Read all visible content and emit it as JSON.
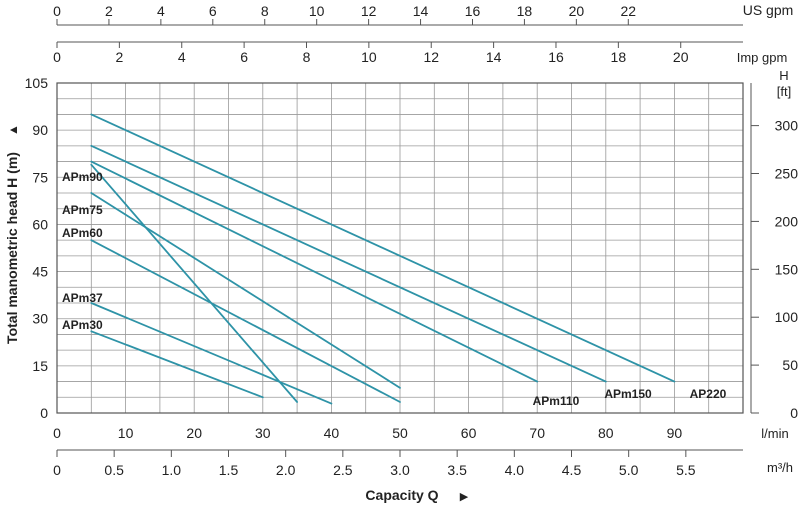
{
  "chart_data": {
    "type": "line",
    "title": "",
    "xlabel": "Capacity Q",
    "ylabel": "Total manometric head H (m)",
    "ylabel_arrow": "▲",
    "xlabel_arrow": "▶",
    "grid": true,
    "x_lpm": {
      "unit": "l/min",
      "range": [
        0,
        100
      ],
      "ticks": [
        0,
        10,
        20,
        30,
        40,
        50,
        60,
        70,
        80,
        90
      ]
    },
    "x_m3h": {
      "unit": "m³/h",
      "ticks": [
        "0",
        "0.5",
        "1.0",
        "1.5",
        "2.0",
        "2.5",
        "3.0",
        "3.5",
        "4.0",
        "4.5",
        "5.0",
        "5.5"
      ]
    },
    "x_imp": {
      "unit": "Imp gpm",
      "ticks": [
        0,
        2,
        4,
        6,
        8,
        10,
        12,
        14,
        16,
        18,
        20
      ]
    },
    "x_us": {
      "unit": "US gpm",
      "ticks": [
        0,
        2,
        4,
        6,
        8,
        10,
        12,
        14,
        16,
        18,
        20,
        22
      ]
    },
    "y_m": {
      "range": [
        0,
        105
      ],
      "ticks": [
        0,
        15,
        30,
        45,
        60,
        75,
        90,
        105
      ]
    },
    "y_ft": {
      "unit_line1": "H",
      "unit_line2": "[ft]",
      "ticks": [
        0,
        50,
        100,
        150,
        200,
        250,
        300
      ]
    },
    "series": [
      {
        "name": "APm30",
        "points": [
          [
            5,
            26
          ],
          [
            30,
            5
          ]
        ]
      },
      {
        "name": "APm37",
        "points": [
          [
            5,
            35
          ],
          [
            40,
            3
          ]
        ]
      },
      {
        "name": "APm60",
        "points": [
          [
            5,
            55
          ],
          [
            50,
            3.5
          ]
        ]
      },
      {
        "name": "APm75",
        "points": [
          [
            5,
            70
          ],
          [
            50,
            8
          ]
        ]
      },
      {
        "name": "APm90",
        "points": [
          [
            5,
            79
          ],
          [
            35,
            3.5
          ]
        ]
      },
      {
        "name": "APm110",
        "points": [
          [
            5,
            80
          ],
          [
            70,
            10
          ]
        ]
      },
      {
        "name": "APm150",
        "points": [
          [
            5,
            85
          ],
          [
            80,
            10
          ]
        ]
      },
      {
        "name": "AP220",
        "points": [
          [
            5,
            95
          ],
          [
            90,
            10
          ]
        ]
      }
    ],
    "line_color": "#2e93a7"
  }
}
